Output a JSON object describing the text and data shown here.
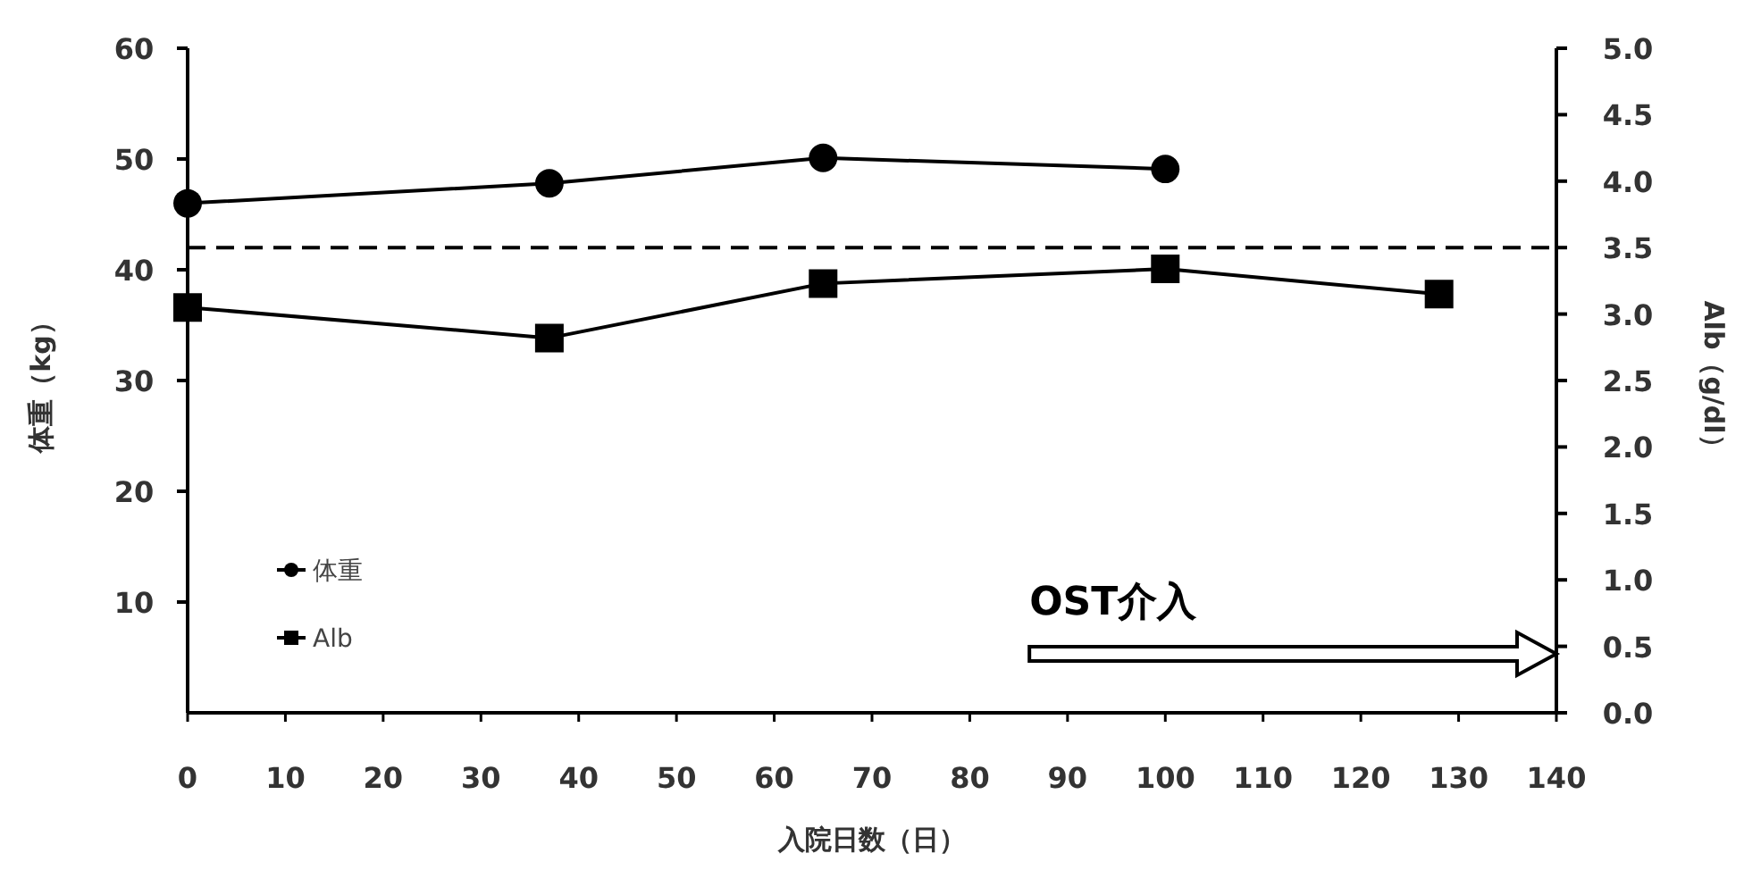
{
  "chart_data": {
    "type": "line",
    "xlabel": "入院日数（日）",
    "ylabel": "体重（kg）",
    "y2label": "Alb（g/dl）",
    "xlim": [
      0,
      140
    ],
    "xticks": [
      0,
      10,
      20,
      30,
      40,
      50,
      60,
      70,
      80,
      90,
      100,
      110,
      120,
      130,
      140
    ],
    "ylim": [
      0,
      60
    ],
    "yticks": [
      10,
      20,
      30,
      40,
      50,
      60
    ],
    "y2lim": [
      0,
      5
    ],
    "y2ticks": [
      {
        "value": 0,
        "label": "0.0"
      },
      {
        "value": 0.5,
        "label": "0.5"
      },
      {
        "value": 1,
        "label": "1.0"
      },
      {
        "value": 1.5,
        "label": "1.5"
      },
      {
        "value": 2,
        "label": "2.0"
      },
      {
        "value": 2.5,
        "label": "2.5"
      },
      {
        "value": 3,
        "label": "3.0"
      },
      {
        "value": 3.5,
        "label": "3.5"
      },
      {
        "value": 4,
        "label": "4.0"
      },
      {
        "value": 4.5,
        "label": "4.5"
      },
      {
        "value": 5,
        "label": "5.0"
      }
    ],
    "series": [
      {
        "name": "体重",
        "color": "#000000",
        "marker": "circle",
        "x": [
          0,
          37,
          65,
          100
        ],
        "values": [
          46,
          47.8,
          50.1,
          49.1
        ]
      },
      {
        "name": "Alb",
        "color": "#000000",
        "marker": "square",
        "axis": "y2",
        "x": [
          0,
          37,
          65,
          100,
          128
        ],
        "values": [
          3.05,
          2.82,
          3.23,
          3.34,
          3.15
        ]
      }
    ],
    "ref_lines": [
      {
        "axis": "y2",
        "value": 3.5,
        "line_style": "dashed",
        "color": "#000000"
      }
    ],
    "annotations": [
      "OST介入"
    ],
    "legend": "bottom left",
    "grid": false
  }
}
